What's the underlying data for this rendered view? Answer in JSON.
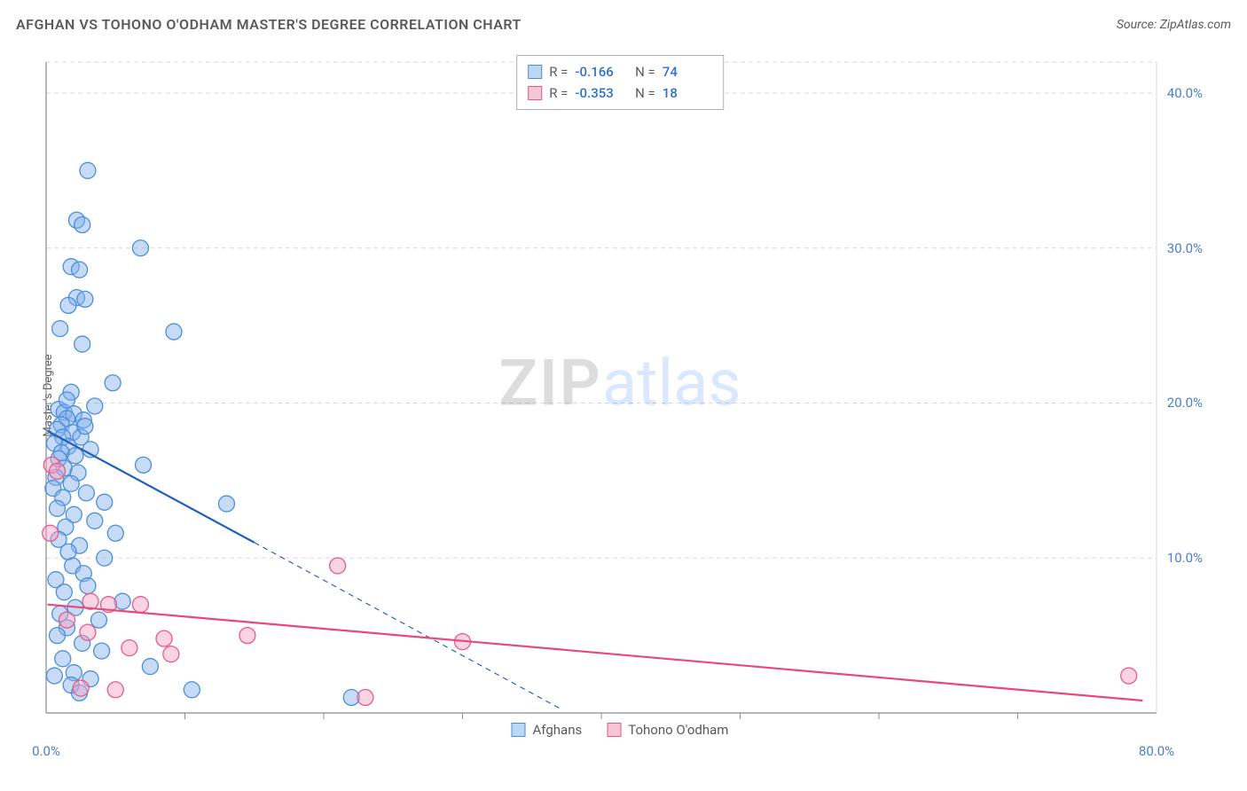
{
  "header": {
    "title": "AFGHAN VS TOHONO O'ODHAM MASTER'S DEGREE CORRELATION CHART",
    "source": "Source: ZipAtlas.com"
  },
  "ylabel": "Master's Degree",
  "watermark": {
    "part1": "ZIP",
    "part2": "atlas"
  },
  "chart": {
    "type": "scatter",
    "background_color": "#ffffff",
    "grid_color": "#d8d8d8",
    "axis_color": "#8a8a8a",
    "xlim": [
      0,
      80
    ],
    "ylim": [
      0,
      42
    ],
    "xtick_label_left": "0.0%",
    "xtick_label_right": "80.0%",
    "xtick_color": "#4a7fc9",
    "xtick_minor_positions": [
      10,
      20,
      30,
      40,
      50,
      60,
      70
    ],
    "yticks": [
      {
        "v": 10,
        "label": "10.0%"
      },
      {
        "v": 20,
        "label": "20.0%"
      },
      {
        "v": 30,
        "label": "30.0%"
      },
      {
        "v": 40,
        "label": "40.0%"
      }
    ],
    "ytick_color": "#4a7fc9",
    "series": [
      {
        "key": "afghans",
        "name": "Afghans",
        "marker_fill": "rgba(130,175,235,0.45)",
        "marker_stroke": "#4a8fd9",
        "swatch_fill": "#bcd6f5",
        "swatch_border": "#4a8fd9",
        "marker_r": 9,
        "R": "-0.166",
        "N": "74",
        "value_color": "#2f6fd0",
        "trend": {
          "solid": {
            "x1": 0.1,
            "y1": 18.2,
            "x2": 15,
            "y2": 11.0
          },
          "dashed": {
            "x1": 15,
            "y1": 11.0,
            "x2": 37,
            "y2": 0.3
          },
          "stroke": "#1f5fbf",
          "width": 2.2
        },
        "points": [
          [
            3.0,
            35.0
          ],
          [
            2.2,
            31.8
          ],
          [
            2.6,
            31.5
          ],
          [
            6.8,
            30.0
          ],
          [
            1.8,
            28.8
          ],
          [
            2.4,
            28.6
          ],
          [
            2.2,
            26.8
          ],
          [
            2.8,
            26.7
          ],
          [
            1.6,
            26.3
          ],
          [
            1.0,
            24.8
          ],
          [
            9.2,
            24.6
          ],
          [
            2.6,
            23.8
          ],
          [
            4.8,
            21.3
          ],
          [
            1.8,
            20.7
          ],
          [
            0.9,
            19.6
          ],
          [
            1.3,
            19.4
          ],
          [
            2.0,
            19.3
          ],
          [
            1.5,
            19.0
          ],
          [
            2.7,
            18.9
          ],
          [
            1.1,
            18.6
          ],
          [
            0.8,
            18.3
          ],
          [
            1.9,
            18.1
          ],
          [
            1.2,
            17.8
          ],
          [
            2.5,
            17.8
          ],
          [
            0.6,
            17.4
          ],
          [
            1.6,
            17.2
          ],
          [
            3.2,
            17.0
          ],
          [
            1.1,
            16.8
          ],
          [
            2.1,
            16.6
          ],
          [
            0.9,
            16.4
          ],
          [
            7.0,
            16.0
          ],
          [
            1.3,
            15.8
          ],
          [
            2.3,
            15.5
          ],
          [
            0.7,
            15.2
          ],
          [
            1.8,
            14.8
          ],
          [
            0.5,
            14.5
          ],
          [
            2.9,
            14.2
          ],
          [
            1.2,
            13.9
          ],
          [
            4.2,
            13.6
          ],
          [
            13.0,
            13.5
          ],
          [
            0.8,
            13.2
          ],
          [
            2.0,
            12.8
          ],
          [
            3.5,
            12.4
          ],
          [
            1.4,
            12.0
          ],
          [
            5.0,
            11.6
          ],
          [
            0.9,
            11.2
          ],
          [
            2.4,
            10.8
          ],
          [
            1.6,
            10.4
          ],
          [
            4.2,
            10.0
          ],
          [
            1.9,
            9.5
          ],
          [
            2.7,
            9.0
          ],
          [
            0.7,
            8.6
          ],
          [
            3.0,
            8.2
          ],
          [
            1.3,
            7.8
          ],
          [
            5.5,
            7.2
          ],
          [
            2.1,
            6.8
          ],
          [
            1.0,
            6.4
          ],
          [
            3.8,
            6.0
          ],
          [
            1.5,
            5.5
          ],
          [
            0.8,
            5.0
          ],
          [
            2.6,
            4.5
          ],
          [
            4.0,
            4.0
          ],
          [
            1.2,
            3.5
          ],
          [
            7.5,
            3.0
          ],
          [
            2.0,
            2.6
          ],
          [
            0.6,
            2.4
          ],
          [
            3.2,
            2.2
          ],
          [
            1.8,
            1.8
          ],
          [
            10.5,
            1.5
          ],
          [
            2.4,
            1.3
          ],
          [
            22.0,
            1.0
          ],
          [
            2.8,
            18.5
          ],
          [
            1.5,
            20.2
          ],
          [
            3.5,
            19.8
          ]
        ]
      },
      {
        "key": "tohono",
        "name": "Tohono O'odham",
        "marker_fill": "rgba(245,160,190,0.45)",
        "marker_stroke": "#e55a8a",
        "swatch_fill": "#f6c6d7",
        "swatch_border": "#e55a8a",
        "marker_r": 9,
        "R": "-0.353",
        "N": "18",
        "value_color": "#2f6fd0",
        "trend": {
          "solid": {
            "x1": 0.1,
            "y1": 7.0,
            "x2": 79,
            "y2": 0.8
          },
          "stroke": "#e8487c",
          "width": 2.2
        },
        "points": [
          [
            0.4,
            16.0
          ],
          [
            0.8,
            15.6
          ],
          [
            0.3,
            11.6
          ],
          [
            3.2,
            7.2
          ],
          [
            4.5,
            7.0
          ],
          [
            6.8,
            7.0
          ],
          [
            1.5,
            6.0
          ],
          [
            3.0,
            5.2
          ],
          [
            8.5,
            4.8
          ],
          [
            14.5,
            5.0
          ],
          [
            6.0,
            4.2
          ],
          [
            9.0,
            3.8
          ],
          [
            2.5,
            1.6
          ],
          [
            5.0,
            1.5
          ],
          [
            21.0,
            9.5
          ],
          [
            30.0,
            4.6
          ],
          [
            23.0,
            1.0
          ],
          [
            78.0,
            2.4
          ]
        ]
      }
    ],
    "bottom_legend": [
      {
        "series": "afghans"
      },
      {
        "series": "tohono"
      }
    ]
  }
}
